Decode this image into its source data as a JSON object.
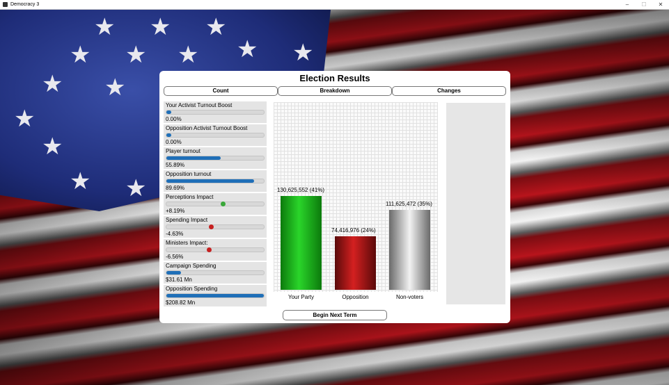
{
  "window": {
    "title": "Democracy 3",
    "controls": {
      "minimize": "–",
      "maximize": "☐",
      "close": "✕"
    }
  },
  "dialog": {
    "title": "Election Results",
    "tabs": [
      "Count",
      "Breakdown",
      "Changes"
    ],
    "begin_button": "Begin Next Term"
  },
  "stats": [
    {
      "label": "Your Activist Turnout Boost",
      "value": "0.00%",
      "fill": 0.0,
      "kind": "bar"
    },
    {
      "label": "Opposition Activist Turnout Boost",
      "value": "0.00%",
      "fill": 0.0,
      "kind": "bar"
    },
    {
      "label": "Player turnout",
      "value": "55.89%",
      "fill": 0.5589,
      "kind": "bar"
    },
    {
      "label": "Opposition turnout",
      "value": "89.69%",
      "fill": 0.8969,
      "kind": "bar"
    },
    {
      "label": "Perceptions Impact",
      "value": "+8.19%",
      "fill": 0.0819,
      "kind": "center",
      "color": "#3aa83a"
    },
    {
      "label": "Spending Impact",
      "value": "-4.63%",
      "fill": -0.0463,
      "kind": "center",
      "color": "#c62020"
    },
    {
      "label": "Ministers Impact:",
      "value": "-6.56%",
      "fill": -0.0656,
      "kind": "center",
      "color": "#c62020"
    },
    {
      "label": "Campaign Spending",
      "value": "$31.61 Mn",
      "fill": 0.15,
      "kind": "bar"
    },
    {
      "label": "Opposition Spending",
      "value": "$208.82 Mn",
      "fill": 1.0,
      "kind": "bar"
    }
  ],
  "colors": {
    "bar_blue": "#1f6fb8",
    "panel": "#e4e4e4"
  },
  "chart_data": {
    "type": "bar",
    "categories": [
      "Your Party",
      "Opposition",
      "Non-voters"
    ],
    "values": [
      130625552,
      74416976,
      111625472
    ],
    "value_labels": [
      "130,625,552 (41%)",
      "74,416,976 (24%)",
      "111,625,472 (35%)"
    ],
    "colors": [
      "#1fbf1f",
      "#c01818",
      "#bdbdbd"
    ],
    "ylim": [
      0,
      200000000
    ],
    "grid": true
  }
}
